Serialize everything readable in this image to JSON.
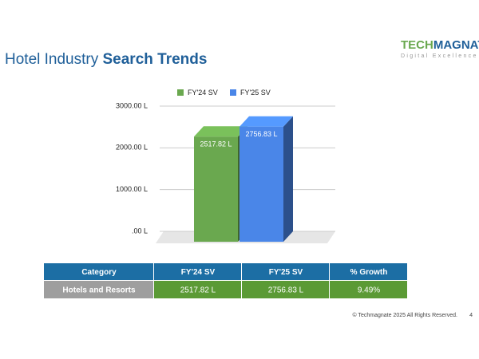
{
  "header": {
    "title_plain": "Hotel Industry ",
    "title_bold": "Search Trends",
    "logo_part1": "TECH",
    "logo_part2": "MAGNATE",
    "logo_tagline": "Digital Excellence"
  },
  "chart_data": {
    "type": "bar3d",
    "categories": [
      null
    ],
    "series": [
      {
        "name": "FY'24 SV",
        "color": "#6aa84f",
        "values": [
          2517.82
        ],
        "value_labels": [
          "2517.82 L"
        ]
      },
      {
        "name": "FY'25 SV",
        "color": "#4a86e8",
        "values": [
          2756.83
        ],
        "value_labels": [
          "2756.83 L"
        ]
      }
    ],
    "ylim": [
      0,
      3000
    ],
    "yticks": [
      {
        "value": 0,
        "label": ".00 L"
      },
      {
        "value": 1000,
        "label": "1000.00 L"
      },
      {
        "value": 2000,
        "label": "2000.00 L"
      },
      {
        "value": 3000,
        "label": "3000.00 L"
      }
    ],
    "grid": true,
    "legend": "top"
  },
  "table": {
    "header": [
      "Category",
      "FY'24 SV",
      "FY'25 SV",
      "% Growth"
    ],
    "rows": [
      [
        "Hotels and Resorts",
        "2517.82 L",
        "2756.83 L",
        "9.49%"
      ]
    ]
  },
  "footer": {
    "copyright": "© Techmagnate 2025 All Rights Reserved.",
    "page": "4"
  }
}
